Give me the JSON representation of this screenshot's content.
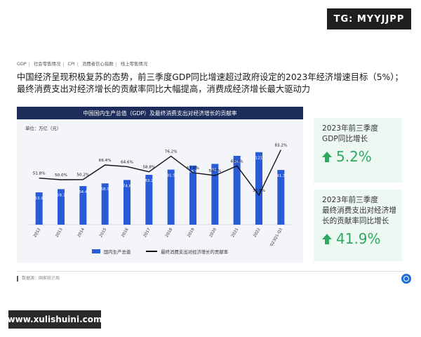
{
  "watermark_top": "TG: MYYJJPP",
  "watermark_bottom": "www.xulishuini.com",
  "breadcrumb": [
    "GDP",
    "社会零售情况",
    "CPI",
    "消费者信心指数",
    "线上零售情况"
  ],
  "headline": {
    "line1": "中国经济呈现积极复苏的态势，前三季度GDP同比增速超过政府设定的2023年经济增速目标（5%）；",
    "line2": "最终消费支出对经济增长的贡献率同比大幅提高，消费成经济增长最大驱动力"
  },
  "chart_header": "中国国内生产总值（GDP）及最终消费支出对经济增长的贡献率",
  "unit_label": "单位：万亿（元）",
  "legend": {
    "bar": "国内生产总值",
    "line": "最终消费支出对经济增长的贡献率"
  },
  "colors": {
    "bar": "#2a5bd7",
    "line": "#111111",
    "accent_green": "#2daa5f",
    "header": "#1d2d5b"
  },
  "chart_data": {
    "type": "bar",
    "categories": [
      "2012",
      "2013",
      "2014",
      "2015",
      "2016",
      "2017",
      "2018",
      "2019",
      "2020",
      "2021",
      "2022",
      "2023Q1-Q3"
    ],
    "series": [
      {
        "name": "国内生产总值",
        "type": "bar",
        "values": [
          53.9,
          59.3,
          64.4,
          68.9,
          74.6,
          83.2,
          91.9,
          98.7,
          101.4,
          114.9,
          121,
          91.3
        ],
        "labels": [
          "53.9",
          "59.3",
          "64.4",
          "68.9",
          "74.6",
          "83.2",
          "91.9",
          "98.7",
          "101.4",
          "114.9",
          "121",
          "91.3"
        ]
      },
      {
        "name": "最终消费支出对经济增长的贡献率",
        "type": "line",
        "values": [
          51.8,
          50.0,
          50.2,
          66.4,
          64.6,
          58.8,
          76.2,
          57.8,
          54.7,
          65.4,
          32.8,
          83.2
        ],
        "labels": [
          "51.8%",
          "50.0%",
          "50.2%",
          "66.4%",
          "64.6%",
          "58.8%",
          "76.2%",
          "57.8%",
          "54.7%",
          "65.4%",
          "32.8%",
          "83.2%"
        ]
      }
    ],
    "title": "中国国内生产总值（GDP）及最终消费支出对经济增长的贡献率",
    "ylabel": "单位：万亿（元）",
    "ylim_bar": [
      0,
      150
    ],
    "ylim_line": [
      0,
      100
    ],
    "grid": false,
    "legend_position": "bottom"
  },
  "cards": [
    {
      "title_lines": [
        "2023年前三季度",
        "GDP同比增长"
      ],
      "value": "5.2%",
      "icon": "up-arrow-icon"
    },
    {
      "title_lines": [
        "2023年前三季度",
        "最终消费支出对经济增",
        "长的贡献率同比增长"
      ],
      "value": "41.9%",
      "icon": "up-arrow-icon"
    }
  ],
  "source": "数据源：国家统计局",
  "logo": "brand-logo-icon"
}
